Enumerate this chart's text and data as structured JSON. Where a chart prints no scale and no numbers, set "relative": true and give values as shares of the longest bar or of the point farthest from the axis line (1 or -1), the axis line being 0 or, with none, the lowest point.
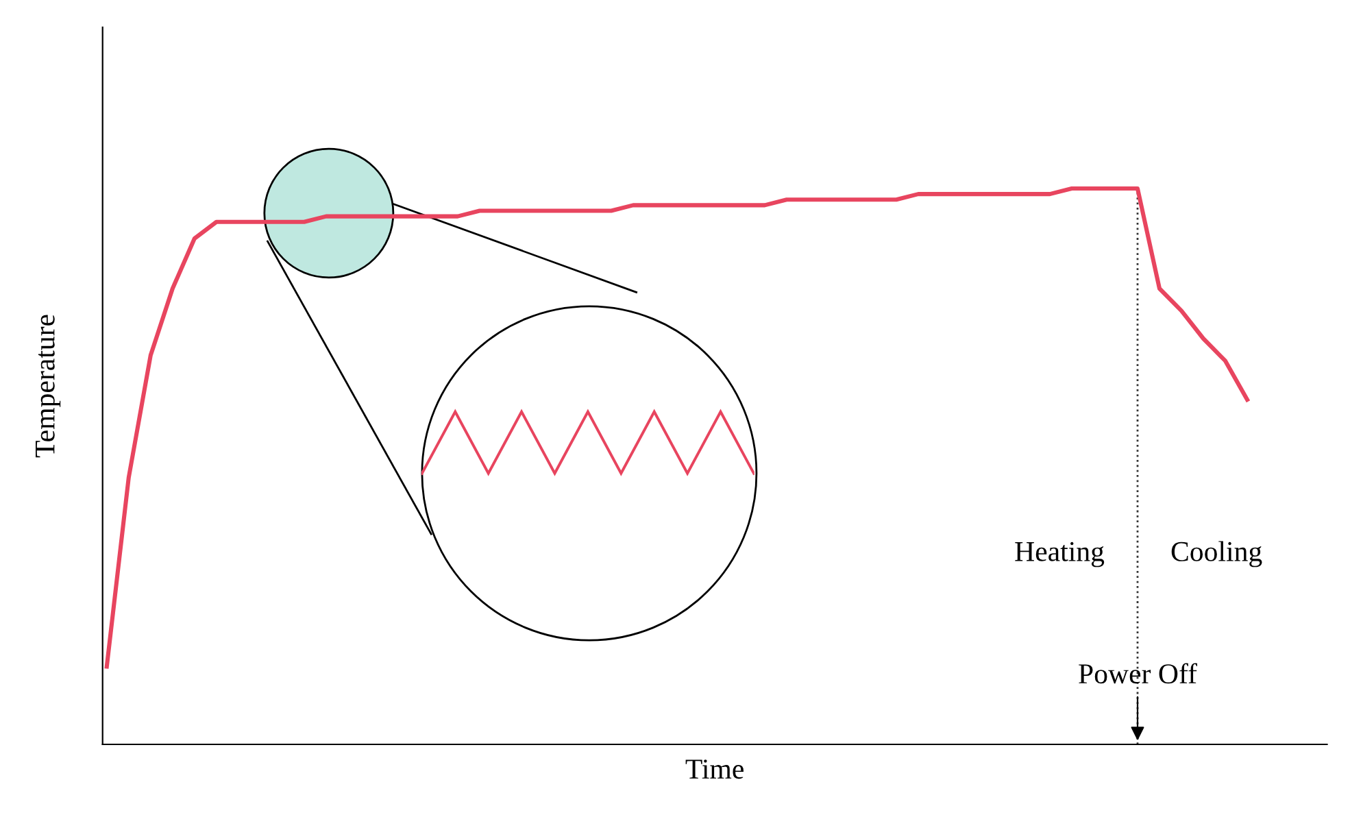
{
  "chart_data": {
    "type": "line",
    "relative": true,
    "xlabel": "Time",
    "ylabel": "Temperature",
    "categories": [
      null,
      null,
      null,
      null,
      null,
      null,
      null,
      null,
      null,
      null,
      null,
      null,
      null,
      null,
      null,
      null,
      null,
      null,
      null,
      null,
      null,
      null,
      null,
      null,
      null,
      null,
      null,
      null,
      null,
      null,
      null,
      null,
      null,
      null,
      null,
      null,
      null,
      null,
      null,
      null,
      null,
      null,
      null,
      null,
      null,
      null,
      null,
      null,
      null,
      null,
      null,
      null,
      null
    ],
    "series": [
      {
        "color": "#e8455f",
        "values": [
          0.14,
          0.48,
          0.7,
          0.82,
          0.91,
          0.94,
          0.94,
          0.94,
          0.94,
          0.94,
          0.95,
          0.95,
          0.95,
          0.95,
          0.95,
          0.95,
          0.95,
          0.96,
          0.96,
          0.96,
          0.96,
          0.96,
          0.96,
          0.96,
          0.97,
          0.97,
          0.97,
          0.97,
          0.97,
          0.97,
          0.97,
          0.98,
          0.98,
          0.98,
          0.98,
          0.98,
          0.98,
          0.99,
          0.99,
          0.99,
          0.99,
          0.99,
          0.99,
          0.99,
          1.0,
          1.0,
          1.0,
          1.0,
          0.82,
          0.78,
          0.73,
          0.69,
          0.62
        ]
      }
    ],
    "annotations": [
      "Heating",
      "Cooling",
      "Power Off"
    ],
    "grid": false,
    "legend": false,
    "marker": "none",
    "line_style": "solid"
  }
}
